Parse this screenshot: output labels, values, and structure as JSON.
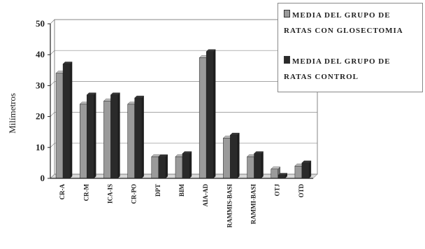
{
  "chart_data": {
    "type": "bar",
    "ylabel": "Milímetros",
    "ylim": [
      0,
      50
    ],
    "yticks": [
      0,
      10,
      20,
      30,
      40,
      50
    ],
    "categories": [
      "CR-A",
      "CR-M",
      "ICA-IS",
      "CR-PO",
      "DPT",
      "BIM",
      "AIA-AD",
      "RAMMIS-BASI",
      "RAMMI-BASI",
      "OTJ",
      "OTD"
    ],
    "series": [
      {
        "name": "MEDIA DEL GRUPO DE RATAS CON GLOSECTOMIA",
        "color": "#9a9a9a",
        "values": [
          34,
          24,
          25,
          24,
          7,
          7,
          39,
          13,
          7,
          3,
          4
        ]
      },
      {
        "name": "MEDIA DEL GRUPO DE RATAS CONTROL",
        "color": "#2a2a2a",
        "values": [
          37,
          27,
          27,
          26,
          7,
          8,
          41,
          14,
          8,
          1,
          5
        ]
      }
    ],
    "grid": true,
    "legend_position": "top-right"
  }
}
